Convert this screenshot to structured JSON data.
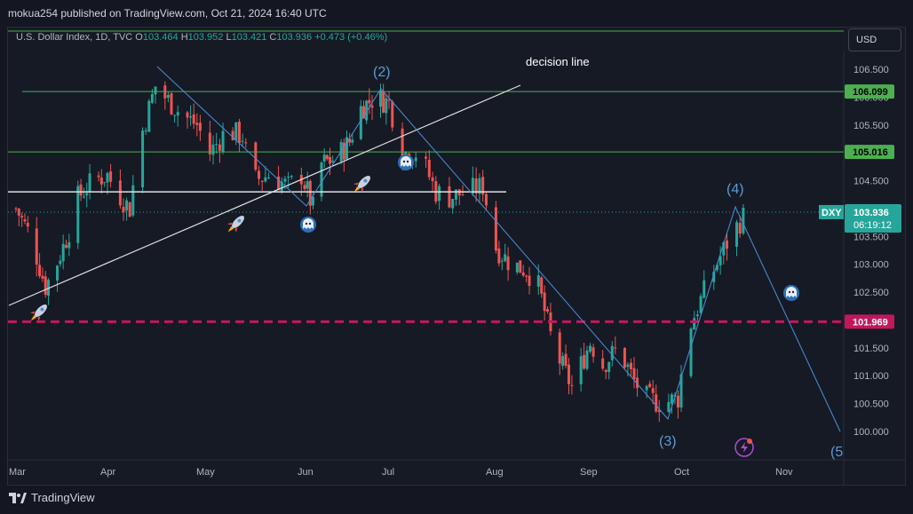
{
  "header": {
    "published_text": "mokua254 published on TradingView.com, Oct 21, 2024 16:40 UTC"
  },
  "legend": {
    "symbol": "U.S. Dollar Index, 1D, TVC",
    "open_label": "O",
    "open": "103.464",
    "high_label": "H",
    "high": "103.952",
    "low_label": "L",
    "low": "103.421",
    "close_label": "C",
    "close": "103.936",
    "change": "+0.473 (+0.46%)"
  },
  "currency_button": "USD",
  "footer": {
    "brand": "TradingView"
  },
  "colors": {
    "background": "#161a25",
    "up": "#26a69a",
    "down": "#ef5350",
    "level_green": "#4caf50",
    "level_pink": "#c2185b",
    "wave_line": "#4a90d9",
    "white_line": "#e0e0e0",
    "price_tag": "#26a69a"
  },
  "icons": [
    "rocket-icon",
    "ghost-icon",
    "flash-icon"
  ],
  "chart_data": {
    "type": "candlestick",
    "title": "U.S. Dollar Index, 1D, TVC",
    "ylim": [
      99.5,
      106.7
    ],
    "y_ticks": [
      "106.500",
      "106.000",
      "105.500",
      "105.000",
      "104.500",
      "104.000",
      "103.500",
      "103.000",
      "102.500",
      "102.000",
      "101.500",
      "101.000",
      "100.500",
      "100.000"
    ],
    "x_ticks": [
      "Mar",
      "Apr",
      "May",
      "Jun",
      "Jul",
      "Aug",
      "Sep",
      "Oct",
      "Nov"
    ],
    "horizontal_levels": [
      {
        "value": 106.099,
        "label": "106.099",
        "color": "#4caf50",
        "style": "solid"
      },
      {
        "value": 105.016,
        "label": "105.016",
        "color": "#4caf50",
        "style": "solid"
      },
      {
        "value": 101.969,
        "label": "101.969",
        "color": "#c2185b",
        "style": "dashed"
      }
    ],
    "current_price": {
      "symbol": "DXY",
      "value": "103.936",
      "countdown": "06:19:12"
    },
    "annotations": {
      "decision_line": "decision  line",
      "wave_labels": [
        "(2)",
        "(3)",
        "(4)",
        "(5"
      ]
    },
    "price_path": [
      [
        "Mar 1",
        104.0
      ],
      [
        "Mar 6",
        103.5
      ],
      [
        "Mar 11",
        102.6
      ],
      [
        "Mar 14",
        102.9
      ],
      [
        "Mar 19",
        103.6
      ],
      [
        "Mar 22",
        104.2
      ],
      [
        "Mar 27",
        104.5
      ],
      [
        "Apr 1",
        104.6
      ],
      [
        "Apr 4",
        104.3
      ],
      [
        "Apr 8",
        104.0
      ],
      [
        "Apr 11",
        105.2
      ],
      [
        "Apr 16",
        106.2
      ],
      [
        "Apr 19",
        106.0
      ],
      [
        "Apr 24",
        105.7
      ],
      [
        "Apr 29",
        105.5
      ],
      [
        "May 3",
        105.0
      ],
      [
        "May 8",
        105.4
      ],
      [
        "May 13",
        105.3
      ],
      [
        "May 16",
        104.5
      ],
      [
        "May 21",
        104.6
      ],
      [
        "May 27",
        104.4
      ],
      [
        "May 31",
        104.6
      ],
      [
        "Jun 4",
        104.0
      ],
      [
        "Jun 7",
        104.8
      ],
      [
        "Jun 12",
        104.9
      ],
      [
        "Jun 17",
        105.2
      ],
      [
        "Jun 21",
        105.8
      ],
      [
        "Jun 26",
        106.0
      ],
      [
        "Jul 1",
        105.9
      ],
      [
        "Jul 5",
        105.0
      ],
      [
        "Jul 10",
        105.0
      ],
      [
        "Jul 15",
        104.3
      ],
      [
        "Jul 19",
        104.2
      ],
      [
        "Jul 24",
        104.3
      ],
      [
        "Jul 29",
        104.4
      ],
      [
        "Aug 2",
        103.3
      ],
      [
        "Aug 7",
        103.0
      ],
      [
        "Aug 12",
        102.9
      ],
      [
        "Aug 16",
        102.6
      ],
      [
        "Aug 21",
        101.5
      ],
      [
        "Aug 27",
        100.8
      ],
      [
        "Sep 2",
        101.6
      ],
      [
        "Sep 6",
        101.2
      ],
      [
        "Sep 11",
        101.5
      ],
      [
        "Sep 16",
        100.9
      ],
      [
        "Sep 20",
        100.6
      ],
      [
        "Sep 25",
        100.5
      ],
      [
        "Sep 30",
        100.6
      ],
      [
        "Oct 3",
        101.8
      ],
      [
        "Oct 8",
        102.5
      ],
      [
        "Oct 11",
        102.9
      ],
      [
        "Oct 16",
        103.5
      ],
      [
        "Oct 21",
        103.94
      ]
    ]
  }
}
